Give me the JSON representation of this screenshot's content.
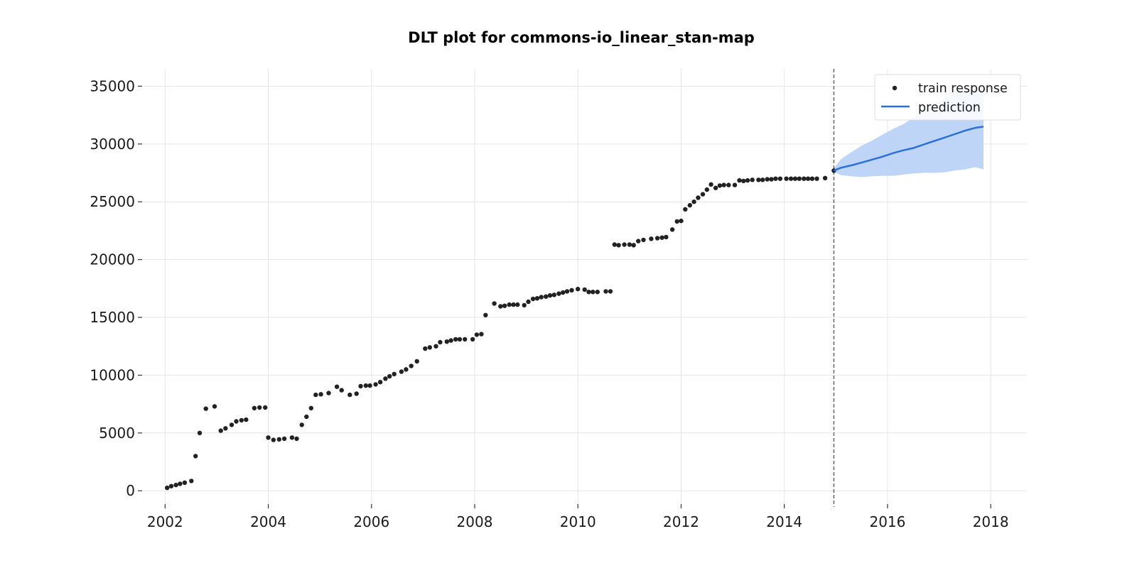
{
  "chart_data": {
    "type": "scatter",
    "title": "DLT plot for commons-io_linear_stan-map",
    "xlabel": "",
    "ylabel": "",
    "xlim": [
      2001.5,
      2018.7
    ],
    "ylim": [
      -1400,
      36500
    ],
    "xticks": [
      2002,
      2004,
      2006,
      2008,
      2010,
      2012,
      2014,
      2016,
      2018
    ],
    "yticks": [
      0,
      5000,
      10000,
      15000,
      20000,
      25000,
      30000,
      35000
    ],
    "grid": true,
    "legend_position": "top-right",
    "split_date": 2014.96,
    "series": [
      {
        "name": "train response",
        "kind": "scatter",
        "color": "#222222",
        "points": [
          [
            2002.04,
            250
          ],
          [
            2002.12,
            400
          ],
          [
            2002.21,
            500
          ],
          [
            2002.29,
            600
          ],
          [
            2002.38,
            700
          ],
          [
            2002.51,
            850
          ],
          [
            2002.59,
            3000
          ],
          [
            2002.67,
            5000
          ],
          [
            2002.79,
            7100
          ],
          [
            2002.96,
            7300
          ],
          [
            2003.08,
            5200
          ],
          [
            2003.17,
            5400
          ],
          [
            2003.29,
            5700
          ],
          [
            2003.38,
            6000
          ],
          [
            2003.48,
            6100
          ],
          [
            2003.57,
            6150
          ],
          [
            2003.73,
            7150
          ],
          [
            2003.83,
            7200
          ],
          [
            2003.94,
            7200
          ],
          [
            2004.0,
            4600
          ],
          [
            2004.1,
            4400
          ],
          [
            2004.21,
            4450
          ],
          [
            2004.31,
            4500
          ],
          [
            2004.46,
            4600
          ],
          [
            2004.55,
            4500
          ],
          [
            2004.65,
            5700
          ],
          [
            2004.74,
            6400
          ],
          [
            2004.83,
            7150
          ],
          [
            2004.92,
            8300
          ],
          [
            2005.02,
            8350
          ],
          [
            2005.17,
            8450
          ],
          [
            2005.33,
            9000
          ],
          [
            2005.42,
            8700
          ],
          [
            2005.58,
            8300
          ],
          [
            2005.71,
            8400
          ],
          [
            2005.79,
            9050
          ],
          [
            2005.89,
            9100
          ],
          [
            2005.97,
            9100
          ],
          [
            2006.08,
            9200
          ],
          [
            2006.17,
            9400
          ],
          [
            2006.27,
            9700
          ],
          [
            2006.35,
            9900
          ],
          [
            2006.44,
            10100
          ],
          [
            2006.58,
            10300
          ],
          [
            2006.67,
            10500
          ],
          [
            2006.77,
            10800
          ],
          [
            2006.88,
            11200
          ],
          [
            2007.04,
            12300
          ],
          [
            2007.13,
            12400
          ],
          [
            2007.25,
            12500
          ],
          [
            2007.33,
            12850
          ],
          [
            2007.46,
            12900
          ],
          [
            2007.54,
            13000
          ],
          [
            2007.63,
            13100
          ],
          [
            2007.71,
            13100
          ],
          [
            2007.81,
            13100
          ],
          [
            2007.96,
            13100
          ],
          [
            2008.04,
            13500
          ],
          [
            2008.13,
            13550
          ],
          [
            2008.21,
            15200
          ],
          [
            2008.38,
            16200
          ],
          [
            2008.5,
            15950
          ],
          [
            2008.58,
            16000
          ],
          [
            2008.67,
            16100
          ],
          [
            2008.75,
            16100
          ],
          [
            2008.83,
            16100
          ],
          [
            2008.96,
            16050
          ],
          [
            2009.04,
            16350
          ],
          [
            2009.13,
            16600
          ],
          [
            2009.21,
            16650
          ],
          [
            2009.29,
            16750
          ],
          [
            2009.38,
            16800
          ],
          [
            2009.46,
            16900
          ],
          [
            2009.54,
            16950
          ],
          [
            2009.63,
            17050
          ],
          [
            2009.71,
            17150
          ],
          [
            2009.79,
            17250
          ],
          [
            2009.88,
            17350
          ],
          [
            2010.0,
            17450
          ],
          [
            2010.13,
            17400
          ],
          [
            2010.21,
            17200
          ],
          [
            2010.29,
            17200
          ],
          [
            2010.38,
            17200
          ],
          [
            2010.54,
            17250
          ],
          [
            2010.63,
            17250
          ],
          [
            2010.71,
            21300
          ],
          [
            2010.79,
            21250
          ],
          [
            2010.9,
            21300
          ],
          [
            2011.0,
            21300
          ],
          [
            2011.08,
            21250
          ],
          [
            2011.17,
            21600
          ],
          [
            2011.27,
            21700
          ],
          [
            2011.42,
            21800
          ],
          [
            2011.54,
            21850
          ],
          [
            2011.63,
            21900
          ],
          [
            2011.71,
            21950
          ],
          [
            2011.83,
            22600
          ],
          [
            2011.92,
            23300
          ],
          [
            2012.0,
            23350
          ],
          [
            2012.08,
            24350
          ],
          [
            2012.17,
            24700
          ],
          [
            2012.25,
            25000
          ],
          [
            2012.33,
            25350
          ],
          [
            2012.42,
            25650
          ],
          [
            2012.5,
            26050
          ],
          [
            2012.58,
            26500
          ],
          [
            2012.67,
            26200
          ],
          [
            2012.75,
            26400
          ],
          [
            2012.83,
            26450
          ],
          [
            2012.92,
            26450
          ],
          [
            2013.04,
            26450
          ],
          [
            2013.13,
            26850
          ],
          [
            2013.21,
            26800
          ],
          [
            2013.29,
            26850
          ],
          [
            2013.38,
            26900
          ],
          [
            2013.5,
            26900
          ],
          [
            2013.58,
            26900
          ],
          [
            2013.67,
            26950
          ],
          [
            2013.75,
            26950
          ],
          [
            2013.83,
            27000
          ],
          [
            2013.92,
            27000
          ],
          [
            2014.04,
            27000
          ],
          [
            2014.13,
            27000
          ],
          [
            2014.21,
            27000
          ],
          [
            2014.29,
            27000
          ],
          [
            2014.38,
            27000
          ],
          [
            2014.46,
            27000
          ],
          [
            2014.54,
            27000
          ],
          [
            2014.63,
            27000
          ],
          [
            2014.79,
            27050
          ],
          [
            2014.96,
            27700
          ]
        ]
      },
      {
        "name": "prediction",
        "kind": "line",
        "color": "#2a6fdb",
        "band_color": "#bcd3f7",
        "x": [
          2014.96,
          2015.1,
          2015.3,
          2015.5,
          2015.7,
          2015.9,
          2016.1,
          2016.3,
          2016.5,
          2016.7,
          2016.9,
          2017.1,
          2017.3,
          2017.5,
          2017.7,
          2017.86
        ],
        "y": [
          27700,
          27950,
          28150,
          28400,
          28650,
          28900,
          29200,
          29450,
          29650,
          29950,
          30250,
          30550,
          30850,
          31150,
          31400,
          31500
        ],
        "lower": [
          27600,
          27300,
          27200,
          27150,
          27200,
          27250,
          27250,
          27350,
          27450,
          27500,
          27500,
          27550,
          27700,
          27800,
          28000,
          27800
        ],
        "upper": [
          27900,
          28700,
          29300,
          29850,
          30300,
          30800,
          31300,
          31700,
          32300,
          32900,
          33400,
          33900,
          34300,
          34700,
          34800,
          34900
        ]
      }
    ]
  }
}
